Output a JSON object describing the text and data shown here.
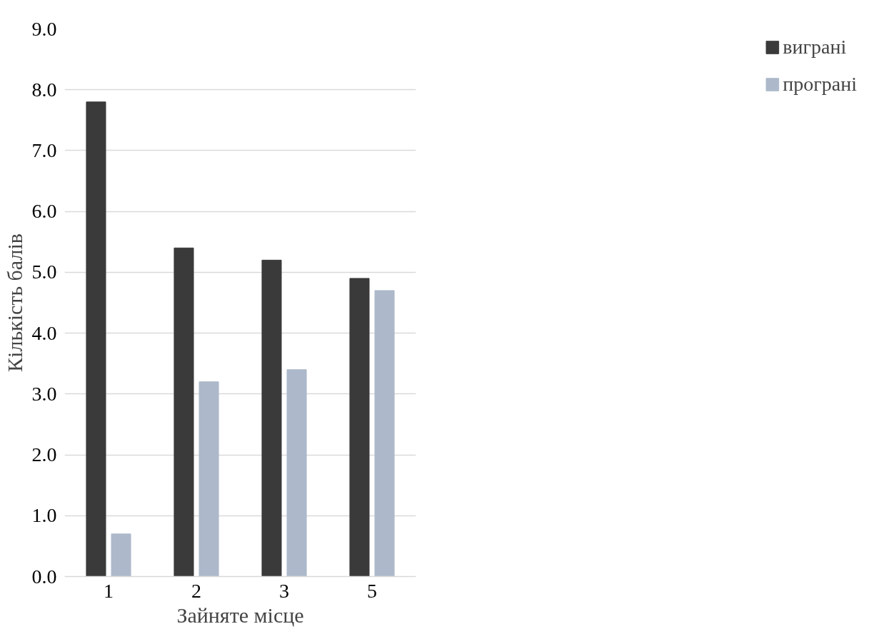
{
  "chart_data": {
    "type": "bar",
    "xlabel": "Зайняте місце",
    "ylabel": "Кількість балів",
    "categories": [
      "1",
      "2",
      "3",
      "5"
    ],
    "series": [
      {
        "name": "виграні",
        "color": "#3a3a3a",
        "values": [
          7.8,
          5.4,
          5.2,
          4.9
        ]
      },
      {
        "name": "програні",
        "color": "#adb9ca",
        "values": [
          0.7,
          3.2,
          3.4,
          4.7
        ]
      }
    ],
    "ylim": [
      0,
      9
    ],
    "yticks": [
      {
        "value": 0,
        "label": "0.0"
      },
      {
        "value": 1,
        "label": "1.0"
      },
      {
        "value": 2,
        "label": "2.0"
      },
      {
        "value": 3,
        "label": "3.0"
      },
      {
        "value": 4,
        "label": "4.0"
      },
      {
        "value": 5,
        "label": "5.0"
      },
      {
        "value": 6,
        "label": "6.0"
      },
      {
        "value": 7,
        "label": "7.0"
      },
      {
        "value": 8,
        "label": "8.0"
      },
      {
        "value": 9,
        "label": "9.0"
      }
    ],
    "grid": "y",
    "legend": "right"
  }
}
